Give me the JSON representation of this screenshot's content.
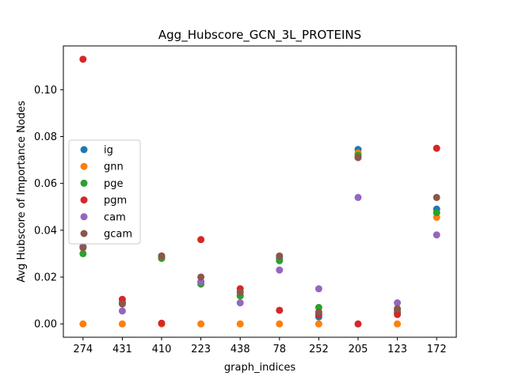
{
  "chart_data": {
    "type": "scatter",
    "title": "Agg_Hubscore_GCN_3L_PROTEINS",
    "xlabel": "graph_indices",
    "ylabel": "Avg Hubscore of Importance Nodes",
    "categories": [
      "274",
      "431",
      "410",
      "223",
      "438",
      "78",
      "252",
      "205",
      "123",
      "172"
    ],
    "ylim": [
      -0.0057,
      0.1187
    ],
    "yticks": [
      "0.00",
      "0.02",
      "0.04",
      "0.06",
      "0.08",
      "0.10"
    ],
    "grid": false,
    "legend_position": "center-left",
    "series": [
      {
        "name": "ig",
        "color": "#1f77b4",
        "values": [
          0.033,
          0.009,
          0.028,
          0.018,
          0.012,
          0.028,
          0.003,
          0.0745,
          0.005,
          0.049
        ]
      },
      {
        "name": "gnn",
        "color": "#ff7f0e",
        "values": [
          0.0,
          0.0,
          0.0,
          0.0,
          0.0,
          0.0,
          0.0,
          0.073,
          0.0,
          0.0455
        ]
      },
      {
        "name": "pge",
        "color": "#2ca02c",
        "values": [
          0.03,
          0.009,
          0.028,
          0.017,
          0.012,
          0.027,
          0.007,
          0.072,
          0.006,
          0.0475
        ]
      },
      {
        "name": "pgm",
        "color": "#d62728",
        "values": [
          0.113,
          0.0105,
          0.0003,
          0.036,
          0.015,
          0.0058,
          0.004,
          0.0,
          0.004,
          0.075
        ]
      },
      {
        "name": "cam",
        "color": "#9467bd",
        "values": [
          0.033,
          0.0055,
          0.029,
          0.018,
          0.009,
          0.023,
          0.015,
          0.054,
          0.009,
          0.038
        ]
      },
      {
        "name": "gcam",
        "color": "#8c564b",
        "values": [
          0.0325,
          0.0085,
          0.029,
          0.02,
          0.0135,
          0.029,
          0.005,
          0.071,
          0.0065,
          0.054
        ]
      }
    ]
  }
}
